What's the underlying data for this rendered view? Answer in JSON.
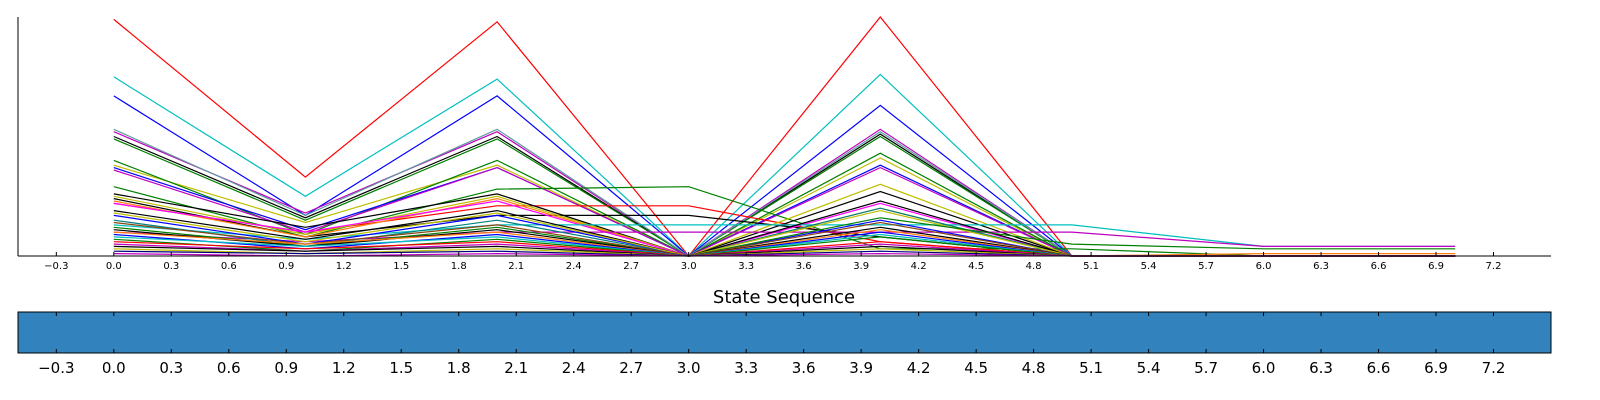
{
  "chart_data": [
    {
      "type": "line",
      "title": "",
      "xlabel": "",
      "ylabel": "",
      "xlim": [
        -0.5,
        7.5
      ],
      "ylim": [
        0,
        100
      ],
      "x": [
        0,
        1,
        2,
        3,
        4,
        5,
        6,
        7
      ],
      "xticks": [
        -0.3,
        0.0,
        0.3,
        0.6,
        0.9,
        1.2,
        1.5,
        1.8,
        2.1,
        2.4,
        2.7,
        3.0,
        3.3,
        3.6,
        3.9,
        4.2,
        4.5,
        4.8,
        5.1,
        5.4,
        5.7,
        6.0,
        6.3,
        6.6,
        6.9,
        7.2
      ],
      "xtick_labels": [
        "−0.3",
        "0.0",
        "0.3",
        "0.6",
        "0.9",
        "1.2",
        "1.5",
        "1.8",
        "2.1",
        "2.4",
        "2.7",
        "3.0",
        "3.3",
        "3.6",
        "3.9",
        "4.2",
        "4.5",
        "4.8",
        "5.1",
        "5.4",
        "5.7",
        "6.0",
        "6.3",
        "6.6",
        "6.9",
        "7.2"
      ],
      "grid": false,
      "legend": "none",
      "series": [
        {
          "color": "#ff0000",
          "values": [
            99,
            33,
            98,
            0,
            100,
            0,
            0,
            0
          ]
        },
        {
          "color": "#00bfbf",
          "values": [
            75,
            25,
            74,
            0,
            76,
            0,
            0,
            0
          ]
        },
        {
          "color": "#0000ff",
          "values": [
            67,
            17,
            67,
            0,
            63,
            0,
            0,
            0
          ]
        },
        {
          "color": "#bf00bf",
          "values": [
            52,
            18,
            52,
            0,
            53,
            0,
            0,
            0
          ]
        },
        {
          "color": "#000000",
          "values": [
            50,
            16,
            50,
            0,
            51,
            0,
            0,
            0
          ]
        },
        {
          "color": "#008000",
          "values": [
            49,
            15,
            49,
            0,
            50,
            0,
            0,
            0
          ]
        },
        {
          "color": "#5f9ea0",
          "values": [
            53,
            17,
            53,
            0,
            52,
            0,
            0,
            0
          ]
        },
        {
          "color": "#bfbf00",
          "values": [
            38,
            14,
            38,
            0,
            41,
            0,
            0,
            0
          ]
        },
        {
          "color": "#008000",
          "values": [
            40,
            9,
            40,
            0,
            43,
            0,
            0,
            0
          ]
        },
        {
          "color": "#0000ff",
          "values": [
            37,
            11,
            37,
            0,
            38,
            0,
            0,
            0
          ]
        },
        {
          "color": "#bf00bf",
          "values": [
            36,
            10,
            37,
            0,
            37,
            0,
            0,
            0
          ]
        },
        {
          "color": "#008000",
          "values": [
            29,
            8,
            28,
            29,
            3,
            3,
            0,
            0
          ]
        },
        {
          "color": "#ff0000",
          "values": [
            22,
            10,
            21,
            21,
            6,
            0,
            0,
            0
          ]
        },
        {
          "color": "#000000",
          "values": [
            26,
            12,
            26,
            0,
            27,
            0,
            0,
            0
          ]
        },
        {
          "color": "#000000",
          "values": [
            24,
            8,
            17,
            17,
            8,
            0,
            0,
            0
          ]
        },
        {
          "color": "#bfbf00",
          "values": [
            25,
            9,
            25,
            0,
            30,
            0,
            0,
            0
          ]
        },
        {
          "color": "#ff7f0e",
          "values": [
            23,
            8,
            24,
            0,
            20,
            0,
            0,
            0
          ]
        },
        {
          "color": "#ff00ff",
          "values": [
            22,
            10,
            23,
            0,
            22,
            0,
            0,
            0
          ]
        },
        {
          "color": "#00bfbf",
          "values": [
            13,
            7,
            13,
            13,
            13,
            13,
            4,
            4
          ]
        },
        {
          "color": "#bf00bf",
          "values": [
            10,
            6,
            10,
            10,
            10,
            10,
            4,
            4
          ]
        },
        {
          "color": "#008080",
          "values": [
            15,
            4,
            15,
            0,
            20,
            0,
            0,
            0
          ]
        },
        {
          "color": "#000000",
          "values": [
            19,
            7,
            19,
            0,
            23,
            0,
            0,
            0
          ]
        },
        {
          "color": "#0000ff",
          "values": [
            17,
            5,
            17,
            0,
            15,
            0,
            0,
            0
          ]
        },
        {
          "color": "#bfbf00",
          "values": [
            18,
            6,
            18,
            0,
            19,
            0,
            0,
            0
          ]
        },
        {
          "color": "#008000",
          "values": [
            12,
            4,
            12,
            0,
            16,
            5,
            3,
            3
          ]
        },
        {
          "color": "#8b4513",
          "values": [
            14,
            5,
            13,
            0,
            14,
            0,
            0,
            0
          ]
        },
        {
          "color": "#000000",
          "values": [
            11,
            4,
            11,
            0,
            12,
            0,
            0,
            0
          ]
        },
        {
          "color": "#ff7f0e",
          "values": [
            10,
            5,
            10,
            0,
            11,
            0,
            1,
            1
          ]
        },
        {
          "color": "#0000ff",
          "values": [
            9,
            3,
            9,
            0,
            10,
            0,
            0,
            0
          ]
        },
        {
          "color": "#00bfbf",
          "values": [
            8,
            4,
            8,
            0,
            9,
            0,
            0,
            0
          ]
        },
        {
          "color": "#008000",
          "values": [
            7,
            2,
            7,
            0,
            8,
            0,
            0,
            0
          ]
        },
        {
          "color": "#ff0000",
          "values": [
            6,
            3,
            6,
            0,
            6,
            0,
            0,
            0
          ]
        },
        {
          "color": "#bf00bf",
          "values": [
            5,
            2,
            5,
            0,
            5,
            0,
            0,
            0
          ]
        },
        {
          "color": "#000000",
          "values": [
            4,
            2,
            4,
            0,
            4,
            0,
            0,
            0
          ]
        },
        {
          "color": "#bfbf00",
          "values": [
            3,
            1,
            3,
            0,
            3,
            0,
            0,
            0
          ]
        },
        {
          "color": "#000080",
          "values": [
            2,
            1,
            2,
            0,
            2,
            0,
            0,
            0
          ]
        },
        {
          "color": "#bf00bf",
          "values": [
            1,
            0,
            1,
            0,
            1,
            0,
            0,
            0
          ]
        }
      ]
    },
    {
      "type": "heatmap",
      "title": "State Sequence",
      "xlabel": "",
      "ylabel": "",
      "xlim": [
        -0.5,
        7.5
      ],
      "fill_color": "#3182bd",
      "xticks": [
        -0.3,
        0.0,
        0.3,
        0.6,
        0.9,
        1.2,
        1.5,
        1.8,
        2.1,
        2.4,
        2.7,
        3.0,
        3.3,
        3.6,
        3.9,
        4.2,
        4.5,
        4.8,
        5.1,
        5.4,
        5.7,
        6.0,
        6.3,
        6.6,
        6.9,
        7.2
      ],
      "xtick_labels": [
        "−0.3",
        "0.0",
        "0.3",
        "0.6",
        "0.9",
        "1.2",
        "1.5",
        "1.8",
        "2.1",
        "2.4",
        "2.7",
        "3.0",
        "3.3",
        "3.6",
        "3.9",
        "4.2",
        "4.5",
        "4.8",
        "5.1",
        "5.4",
        "5.7",
        "6.0",
        "6.3",
        "6.6",
        "6.9",
        "7.2"
      ]
    }
  ]
}
